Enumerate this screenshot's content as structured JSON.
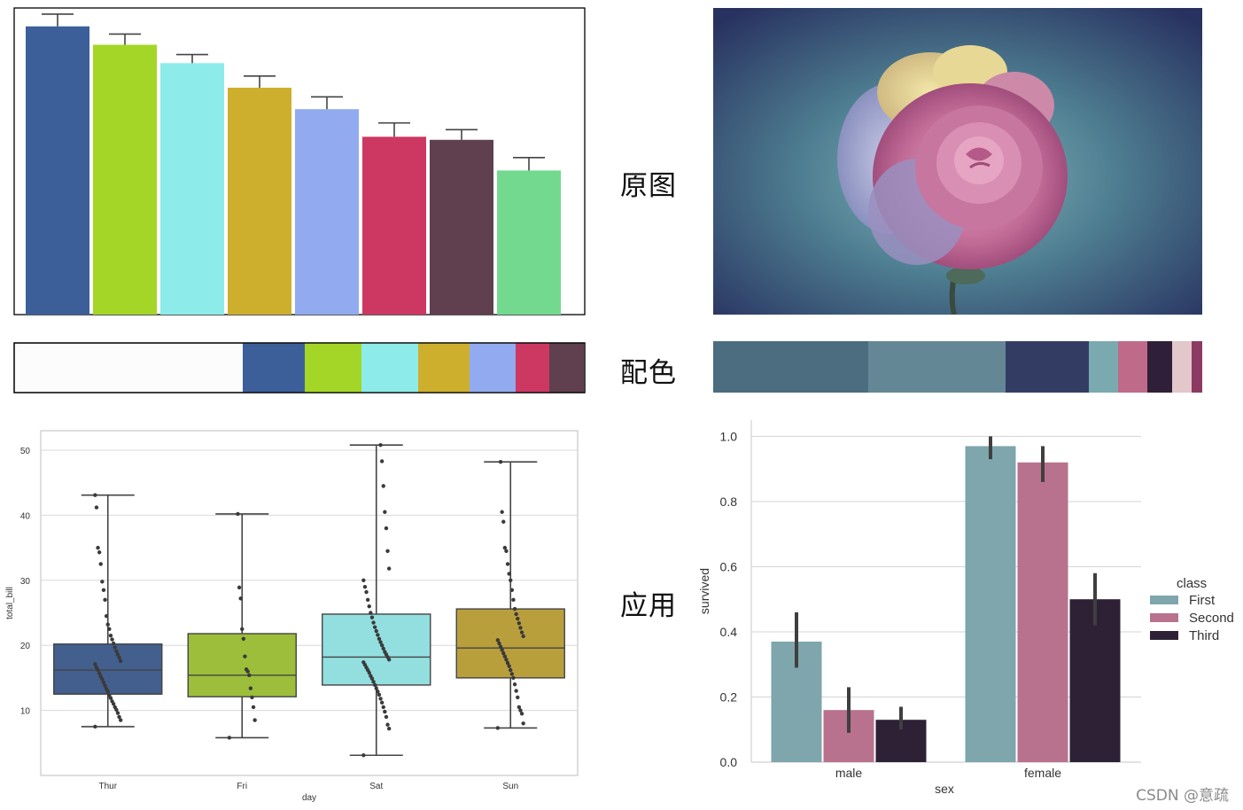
{
  "labels": {
    "original": "原图",
    "palette": "配色",
    "application": "应用"
  },
  "watermark": "CSDN @意疏",
  "colors": {
    "left_palette": [
      "#3c5f9a",
      "#a4d627",
      "#8dece9",
      "#cdaf2d",
      "#92abf0",
      "#cd3862",
      "#603f4e",
      "#72d98e"
    ],
    "right_palette": [
      {
        "color": "#4c6c80",
        "weight": 175
      },
      {
        "color": "#648796",
        "weight": 155
      },
      {
        "color": "#333d64",
        "weight": 94
      },
      {
        "color": "#7aaab0",
        "weight": 33
      },
      {
        "color": "#c06a8a",
        "weight": 33
      },
      {
        "color": "#2f1f38",
        "weight": 28
      },
      {
        "color": "#e2c7cb",
        "weight": 22
      },
      {
        "color": "#8c3a62",
        "weight": 12
      }
    ]
  },
  "chart_data": [
    {
      "type": "bar",
      "categories": [
        "",
        "",
        "",
        "",
        "",
        "",
        "",
        ""
      ],
      "values": [
        9.4,
        8.8,
        8.2,
        7.4,
        6.7,
        5.8,
        5.7,
        4.7
      ],
      "errors": [
        0.4,
        0.35,
        0.28,
        0.38,
        0.4,
        0.45,
        0.33,
        0.42
      ],
      "colors": [
        "#3c5f9a",
        "#a4d627",
        "#8dece9",
        "#cdaf2d",
        "#92abf0",
        "#cd3862",
        "#603f4e",
        "#72d98e"
      ],
      "ylim": [
        0,
        10
      ],
      "grid": false
    },
    {
      "type": "box",
      "xlabel": "day",
      "ylabel": "total_bill",
      "categories": [
        "Thur",
        "Fri",
        "Sat",
        "Sun"
      ],
      "colors": [
        "#425f8d",
        "#9cbe3a",
        "#93dfe0",
        "#b99f3c"
      ],
      "ylim": [
        0,
        53
      ],
      "yticks": [
        10,
        20,
        30,
        40,
        50
      ],
      "boxes": [
        {
          "whisker_low": 7.5,
          "q1": 12.5,
          "median": 16.2,
          "q3": 20.2,
          "whisker_high": 43.1
        },
        {
          "whisker_low": 5.8,
          "q1": 12.1,
          "median": 15.4,
          "q3": 21.8,
          "whisker_high": 40.2
        },
        {
          "whisker_low": 3.1,
          "q1": 13.9,
          "median": 18.2,
          "q3": 24.8,
          "whisker_high": 50.8
        },
        {
          "whisker_low": 7.3,
          "q1": 15.0,
          "median": 19.6,
          "q3": 25.6,
          "whisker_high": 48.2
        }
      ],
      "points": [
        [
          7.5,
          8.5,
          9.0,
          9.6,
          10.1,
          10.5,
          11.0,
          11.4,
          11.9,
          12.3,
          12.9,
          13.3,
          13.8,
          14.3,
          14.8,
          15.2,
          15.7,
          16.2,
          16.6,
          17.1,
          17.6,
          18.1,
          18.6,
          19.1,
          19.7,
          20.3,
          20.9,
          21.5,
          22.5,
          23.2,
          24.5,
          27.0,
          28.5,
          29.8,
          32.5,
          34.3,
          35.0,
          41.2,
          43.1
        ],
        [
          5.8,
          8.5,
          10.5,
          12.0,
          13.4,
          15.4,
          16.0,
          16.3,
          18.3,
          21.0,
          22.5,
          27.2,
          28.9,
          40.2
        ],
        [
          3.1,
          7.2,
          7.8,
          9.0,
          9.8,
          10.5,
          11.2,
          11.8,
          12.4,
          12.9,
          13.4,
          13.9,
          14.4,
          14.9,
          15.3,
          15.8,
          16.2,
          16.6,
          17.0,
          17.4,
          17.8,
          18.2,
          18.6,
          19.0,
          19.5,
          20.0,
          20.5,
          21.0,
          21.6,
          22.2,
          22.8,
          23.5,
          24.3,
          25.0,
          26.0,
          27.0,
          28.2,
          29.0,
          30.0,
          31.8,
          34.5,
          38.0,
          40.5,
          44.5,
          48.3,
          50.8
        ],
        [
          7.3,
          8.0,
          9.5,
          10.0,
          10.5,
          12.0,
          13.0,
          14.0,
          15.0,
          15.6,
          16.2,
          16.8,
          17.3,
          17.8,
          18.3,
          18.8,
          19.3,
          19.8,
          20.3,
          20.8,
          21.4,
          22.0,
          22.7,
          23.4,
          24.1,
          24.8,
          25.6,
          27.0,
          28.5,
          30.0,
          31.0,
          32.5,
          34.5,
          35.0,
          39.0,
          40.5,
          48.2
        ]
      ]
    },
    {
      "type": "bar",
      "xlabel": "sex",
      "ylabel": "survived",
      "categories": [
        "male",
        "female"
      ],
      "ylim": [
        0,
        1.05
      ],
      "yticks": [
        "0.0",
        "0.2",
        "0.4",
        "0.6",
        "0.8",
        "1.0"
      ],
      "legend_title": "class",
      "legend_position": "right",
      "series": [
        {
          "name": "First",
          "color": "#7ea6ac",
          "values": [
            0.37,
            0.97
          ],
          "ci": [
            [
              0.29,
              0.46
            ],
            [
              0.93,
              1.0
            ]
          ]
        },
        {
          "name": "Second",
          "color": "#b8728d",
          "values": [
            0.16,
            0.92
          ],
          "ci": [
            [
              0.09,
              0.23
            ],
            [
              0.86,
              0.97
            ]
          ]
        },
        {
          "name": "Third",
          "color": "#2e2136",
          "values": [
            0.13,
            0.5
          ],
          "ci": [
            [
              0.1,
              0.17
            ],
            [
              0.42,
              0.58
            ]
          ]
        }
      ]
    }
  ]
}
